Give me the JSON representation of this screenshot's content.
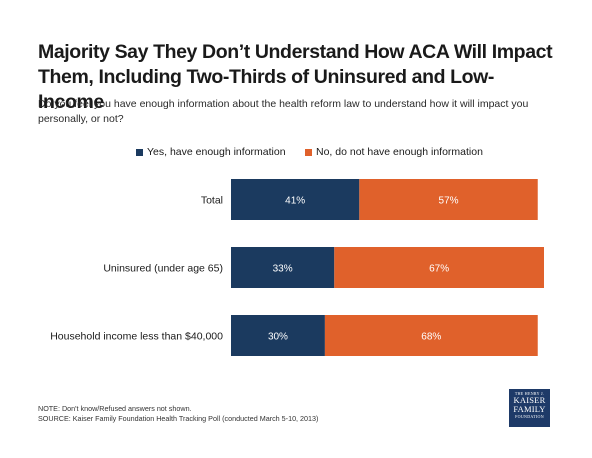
{
  "title": "Majority Say They Don’t Understand How ACA Will Impact Them, Including Two-Thirds of Uninsured and Low-Income",
  "subtitle": "Do you feel you have enough information about the health reform law to understand how it will impact you personally, or not?",
  "colors": {
    "yes": "#1b3a5f",
    "no": "#e0612b"
  },
  "chart_data": {
    "type": "bar",
    "orientation": "horizontal",
    "stacked": true,
    "categories": [
      "Total",
      "Uninsured (under age 65)",
      "Household income less than $40,000"
    ],
    "series": [
      {
        "name": "Yes, have enough information",
        "values": [
          41,
          33,
          30
        ],
        "labels": [
          "41%",
          "33%",
          "30%"
        ]
      },
      {
        "name": "No, do not have enough information",
        "values": [
          57,
          67,
          68
        ],
        "labels": [
          "57%",
          "67%",
          "68%"
        ]
      }
    ],
    "title": "",
    "xlabel": "",
    "ylabel": "",
    "xlim": [
      0,
      100
    ],
    "grid": false,
    "legend_position": "top"
  },
  "footer": {
    "note": "NOTE: Don't know/Refused answers not shown.",
    "source": "SOURCE: Kaiser Family Foundation Health Tracking Poll (conducted March 5-10, 2013)"
  },
  "logo": {
    "line1": "THE HENRY J.",
    "line2": "KAISER",
    "line3": "FAMILY",
    "line4": "FOUNDATION"
  }
}
